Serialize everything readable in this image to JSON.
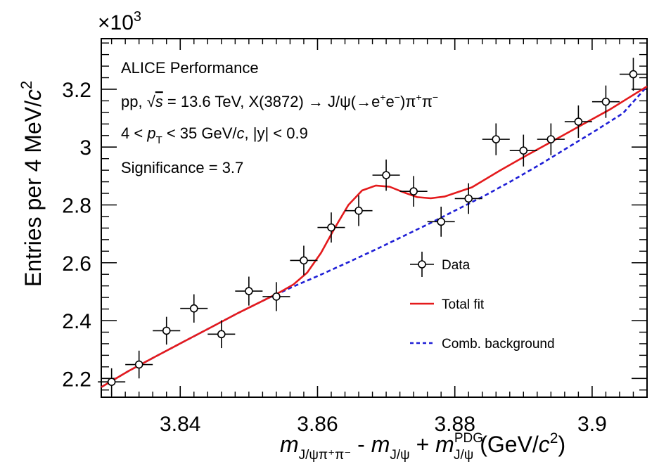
{
  "chart_data": {
    "type": "scatter",
    "title": "",
    "xlim": [
      3.8285,
      3.908
    ],
    "ylim": [
      2.135,
      3.375
    ],
    "x_ticks": [
      3.84,
      3.86,
      3.88,
      3.9
    ],
    "x_tick_labels": [
      "3.84",
      "3.86",
      "3.88",
      "3.9"
    ],
    "y_ticks": [
      2.2,
      2.4,
      2.6,
      2.8,
      3.0,
      3.2
    ],
    "y_tick_labels": [
      "2.2",
      "2.4",
      "2.6",
      "2.8",
      "3",
      "3.2"
    ],
    "y_multiplier": "×10",
    "y_multiplier_exp": "3",
    "ylabel": {
      "main": "Entries per 4 MeV/",
      "unit": "c",
      "unit_exp": "2"
    },
    "xlabel": {
      "m": "m",
      "sub1": "J/ψπ⁺π⁻",
      "minus": " - ",
      "sub2": "J/ψ",
      "plus": " + ",
      "sup3": "PDG",
      "sub3": "J/ψ",
      "unit_open": " (GeV/",
      "unit_c": "c",
      "unit_exp": "2",
      "unit_close": ")"
    },
    "annotations": {
      "experiment": "ALICE Performance",
      "collision_pre": "pp, ",
      "collision_sqrt": "√",
      "collision_s": "s",
      "collision_energy": " = 13.6 TeV, X(3872) → J/ψ(→e",
      "collision_sup_plus": "+",
      "collision_e": "e",
      "collision_sup_minus": "−",
      "collision_pipi": ")π",
      "collision_pi_plus": "+",
      "collision_pi": "π",
      "collision_pi_minus": "−",
      "pt_pre": "4 < ",
      "pt_p": "p",
      "pt_sub": "T",
      "pt_mid": " < 35 GeV/",
      "pt_c": "c",
      "pt_y": ", |y| < 0.9",
      "significance": "Significance = 3.7"
    },
    "series": [
      {
        "name": "Data",
        "style": "points-with-errors",
        "color": "#000000",
        "x": [
          3.83,
          3.834,
          3.838,
          3.842,
          3.846,
          3.85,
          3.854,
          3.858,
          3.862,
          3.866,
          3.87,
          3.874,
          3.878,
          3.882,
          3.886,
          3.89,
          3.894,
          3.898,
          3.902,
          3.906
        ],
        "y": [
          2.188,
          2.248,
          2.365,
          2.442,
          2.353,
          2.502,
          2.483,
          2.608,
          2.722,
          2.78,
          2.903,
          2.847,
          2.742,
          2.822,
          3.027,
          2.988,
          3.027,
          3.088,
          3.157,
          3.252
        ],
        "x_err": 0.002,
        "y_err": [
          0.047,
          0.048,
          0.048,
          0.049,
          0.048,
          0.05,
          0.05,
          0.051,
          0.052,
          0.053,
          0.054,
          0.053,
          0.052,
          0.053,
          0.055,
          0.055,
          0.055,
          0.056,
          0.056,
          0.057
        ]
      },
      {
        "name": "Total fit",
        "style": "solid",
        "color": "#e41a1c",
        "x": [
          3.8285,
          3.8325,
          3.8365,
          3.8405,
          3.8445,
          3.8485,
          3.8525,
          3.8545,
          3.8565,
          3.8585,
          3.8605,
          3.8625,
          3.8645,
          3.8665,
          3.8685,
          3.8705,
          3.8725,
          3.8745,
          3.8765,
          3.8785,
          3.8805,
          3.8825,
          3.8865,
          3.8905,
          3.8945,
          3.8985,
          3.9025,
          3.908
        ],
        "y": [
          2.17,
          2.226,
          2.277,
          2.327,
          2.377,
          2.427,
          2.474,
          2.498,
          2.525,
          2.566,
          2.634,
          2.72,
          2.8,
          2.85,
          2.867,
          2.863,
          2.844,
          2.827,
          2.823,
          2.829,
          2.845,
          2.861,
          2.918,
          2.972,
          3.024,
          3.077,
          3.129,
          3.21
        ]
      },
      {
        "name": "Comb. background",
        "style": "dashed",
        "color": "#1f1fd6",
        "x": [
          3.8285,
          3.8325,
          3.8365,
          3.8405,
          3.8445,
          3.8485,
          3.8525,
          3.8565,
          3.8605,
          3.8645,
          3.8685,
          3.8725,
          3.8765,
          3.8805,
          3.8845,
          3.8885,
          3.8925,
          3.8965,
          3.9005,
          3.9045,
          3.908
        ],
        "y": [
          2.17,
          2.226,
          2.277,
          2.327,
          2.377,
          2.427,
          2.474,
          2.518,
          2.559,
          2.602,
          2.646,
          2.692,
          2.738,
          2.786,
          2.834,
          2.886,
          2.941,
          2.999,
          3.057,
          3.117,
          3.21
        ]
      }
    ],
    "legend": {
      "placement": "bottom-right",
      "entries": [
        "Data",
        "Total fit",
        "Comb. background"
      ]
    },
    "grid": false
  }
}
